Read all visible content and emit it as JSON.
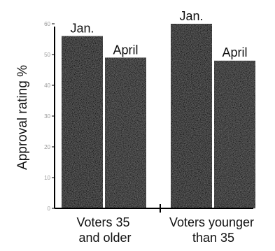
{
  "chart_data": {
    "type": "bar",
    "ylabel": "Approval rating %",
    "ylim": [
      0,
      60
    ],
    "yticks": [
      0,
      10,
      20,
      30,
      40,
      50,
      60
    ],
    "categories": [
      "Voters 35\nand older",
      "Voters younger\nthan 35"
    ],
    "series": [
      {
        "name": "Jan.",
        "values": [
          56,
          60
        ]
      },
      {
        "name": "April",
        "values": [
          49,
          48
        ]
      }
    ],
    "colors": {
      "Jan.": "#0b0b0b",
      "April": "#151515"
    },
    "grid": false,
    "legend": "none"
  }
}
